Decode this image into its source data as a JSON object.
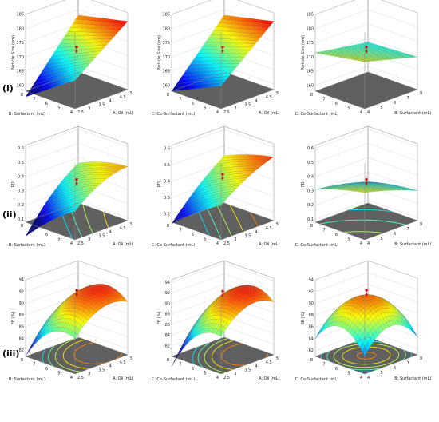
{
  "row_labels": [
    "(i)",
    "(ii)",
    "(iii)"
  ],
  "chart_data": [
    {
      "type": "surface",
      "row": 0,
      "col": 0,
      "zlabel": "Particle Size (nm)",
      "ztick_labels": [
        "160",
        "165",
        "170",
        "175",
        "180",
        "185"
      ],
      "zlim": [
        158,
        185
      ],
      "left_axis": {
        "label": "B: Surfactant (mL)",
        "tick_labels": [
          "4",
          "5",
          "6",
          "7",
          "8"
        ],
        "range": [
          4,
          8
        ]
      },
      "right_axis": {
        "label": "A: Oil (mL)",
        "tick_labels": [
          "2.5",
          "3",
          "3.5",
          "4",
          "4.5",
          "5"
        ],
        "range": [
          2.5,
          5
        ]
      },
      "surface": {
        "c0": 171,
        "cL": -4,
        "cR": 9,
        "cLL": 0,
        "cRR": 0,
        "cLR": 2
      },
      "floor_contours": false
    },
    {
      "type": "surface",
      "row": 0,
      "col": 1,
      "zlabel": "Particle Size (nm)",
      "ztick_labels": [
        "160",
        "165",
        "170",
        "175",
        "180",
        "185"
      ],
      "zlim": [
        158,
        185
      ],
      "left_axis": {
        "label": "C: Co-Surfactant (mL)",
        "tick_labels": [
          "4",
          "5",
          "6",
          "7",
          "8"
        ],
        "range": [
          4,
          8
        ]
      },
      "right_axis": {
        "label": "A: Oil (mL)",
        "tick_labels": [
          "2.5",
          "3",
          "3.5",
          "4",
          "4.5",
          "5"
        ],
        "range": [
          2.5,
          5
        ]
      },
      "surface": {
        "c0": 171,
        "cL": -3,
        "cR": 9,
        "cLL": 0,
        "cRR": 0,
        "cLR": 1
      },
      "floor_contours": false
    },
    {
      "type": "surface",
      "row": 0,
      "col": 2,
      "zlabel": "Particle Size (nm)",
      "ztick_labels": [
        "160",
        "165",
        "170",
        "175",
        "180",
        "185"
      ],
      "zlim": [
        158,
        185
      ],
      "left_axis": {
        "label": "C: Co-Surfactant (mL)",
        "tick_labels": [
          "4",
          "5",
          "6",
          "7",
          "8"
        ],
        "range": [
          4,
          8
        ]
      },
      "right_axis": {
        "label": "B: Surfactant (mL)",
        "tick_labels": [
          "4",
          "5",
          "6",
          "7",
          "8"
        ],
        "range": [
          4,
          8
        ]
      },
      "surface": {
        "c0": 171,
        "cL": -1,
        "cR": -2,
        "cLL": 0,
        "cRR": 0,
        "cLR": 0.5
      },
      "floor_contours": false
    },
    {
      "type": "surface",
      "row": 1,
      "col": 0,
      "zlabel": "PDI",
      "ztick_labels": [
        "0.1",
        "0.2",
        "0.3",
        "0.4",
        "0.5",
        "0.6"
      ],
      "zlim": [
        0.08,
        0.62
      ],
      "left_axis": {
        "label": "B: Surfactant (mL)",
        "tick_labels": [
          "4",
          "5",
          "6",
          "7",
          "8"
        ],
        "range": [
          4,
          8
        ]
      },
      "right_axis": {
        "label": "A: Oil (mL)",
        "tick_labels": [
          "2.5",
          "3",
          "3.5",
          "4",
          "4.5",
          "5"
        ],
        "range": [
          2.5,
          5
        ]
      },
      "surface": {
        "c0": 0.33,
        "cL": -0.1,
        "cR": 0.14,
        "cLL": -0.02,
        "cRR": -0.04,
        "cLR": 0.05
      },
      "floor_contours": true
    },
    {
      "type": "surface",
      "row": 1,
      "col": 1,
      "zlabel": "PDI",
      "ztick_labels": [
        "0.2",
        "0.3",
        "0.4",
        "0.5",
        "0.6"
      ],
      "zlim": [
        0.15,
        0.62
      ],
      "left_axis": {
        "label": "C: Co-Surfactant (mL)",
        "tick_labels": [
          "4",
          "5",
          "6",
          "7",
          "8"
        ],
        "range": [
          4,
          8
        ]
      },
      "right_axis": {
        "label": "A: Oil (mL)",
        "tick_labels": [
          "2.5",
          "3",
          "3.5",
          "4",
          "4.5",
          "5"
        ],
        "range": [
          2.5,
          5
        ]
      },
      "surface": {
        "c0": 0.4,
        "cL": -0.08,
        "cR": 0.12,
        "cLL": -0.01,
        "cRR": -0.02,
        "cLR": 0.03
      },
      "floor_contours": true
    },
    {
      "type": "surface",
      "row": 1,
      "col": 2,
      "zlabel": "PDI",
      "ztick_labels": [
        "0.1",
        "0.2",
        "0.3",
        "0.4",
        "0.5",
        "0.6"
      ],
      "zlim": [
        0.08,
        0.62
      ],
      "left_axis": {
        "label": "C: Co-Surfactant (mL)",
        "tick_labels": [
          "4",
          "5",
          "6",
          "7",
          "8"
        ],
        "range": [
          4,
          8
        ]
      },
      "right_axis": {
        "label": "B: Surfactant (mL)",
        "tick_labels": [
          "4",
          "5",
          "6",
          "7",
          "8"
        ],
        "range": [
          4,
          8
        ]
      },
      "surface": {
        "c0": 0.33,
        "cL": -0.04,
        "cR": -0.05,
        "cLL": -0.01,
        "cRR": -0.01,
        "cLR": 0.01
      },
      "floor_contours": true
    },
    {
      "type": "surface",
      "row": 2,
      "col": 0,
      "zlabel": "EE (%)",
      "ztick_labels": [
        "82",
        "84",
        "86",
        "88",
        "90",
        "92",
        "94"
      ],
      "zlim": [
        81,
        94
      ],
      "left_axis": {
        "label": "B: Surfactant (mL)",
        "tick_labels": [
          "4",
          "5",
          "6",
          "7",
          "8"
        ],
        "range": [
          4,
          8
        ]
      },
      "right_axis": {
        "label": "A: Oil (mL)",
        "tick_labels": [
          "2.5",
          "3",
          "3.5",
          "4",
          "4.5",
          "5"
        ],
        "range": [
          2.5,
          5
        ]
      },
      "surface": {
        "c0": 91,
        "cL": -2,
        "cR": 2.5,
        "cLL": -2.5,
        "cRR": -2,
        "cLR": 1
      },
      "floor_contours": true
    },
    {
      "type": "surface",
      "row": 2,
      "col": 1,
      "zlabel": "EE (%)",
      "ztick_labels": [
        "82",
        "84",
        "86",
        "88",
        "90",
        "92",
        "94"
      ],
      "zlim": [
        80,
        94.5
      ],
      "left_axis": {
        "label": "C: Co-Surfactant (mL)",
        "tick_labels": [
          "4",
          "5",
          "6",
          "7",
          "8"
        ],
        "range": [
          4,
          8
        ]
      },
      "right_axis": {
        "label": "A: Oil (mL)",
        "tick_labels": [
          "2.5",
          "3",
          "3.5",
          "4",
          "4.5",
          "5"
        ],
        "range": [
          2.5,
          5
        ]
      },
      "surface": {
        "c0": 91,
        "cL": -3,
        "cR": 3,
        "cLL": -3,
        "cRR": -2.5,
        "cLR": 1.5
      },
      "floor_contours": true
    },
    {
      "type": "surface",
      "row": 2,
      "col": 2,
      "zlabel": "EE (%)",
      "ztick_labels": [
        "82",
        "84",
        "86",
        "88",
        "90",
        "92",
        "94"
      ],
      "zlim": [
        81,
        94
      ],
      "left_axis": {
        "label": "C: Co-Surfactant (mL)",
        "tick_labels": [
          "4",
          "5",
          "6",
          "7",
          "8"
        ],
        "range": [
          4,
          8
        ]
      },
      "right_axis": {
        "label": "B: Surfactant (mL)",
        "tick_labels": [
          "4",
          "5",
          "6",
          "7",
          "8"
        ],
        "range": [
          4,
          8
        ]
      },
      "surface": {
        "c0": 91,
        "cL": 0,
        "cR": 0,
        "cLL": -3.5,
        "cRR": -3.5,
        "cLR": 0
      },
      "floor_contours": true
    }
  ]
}
